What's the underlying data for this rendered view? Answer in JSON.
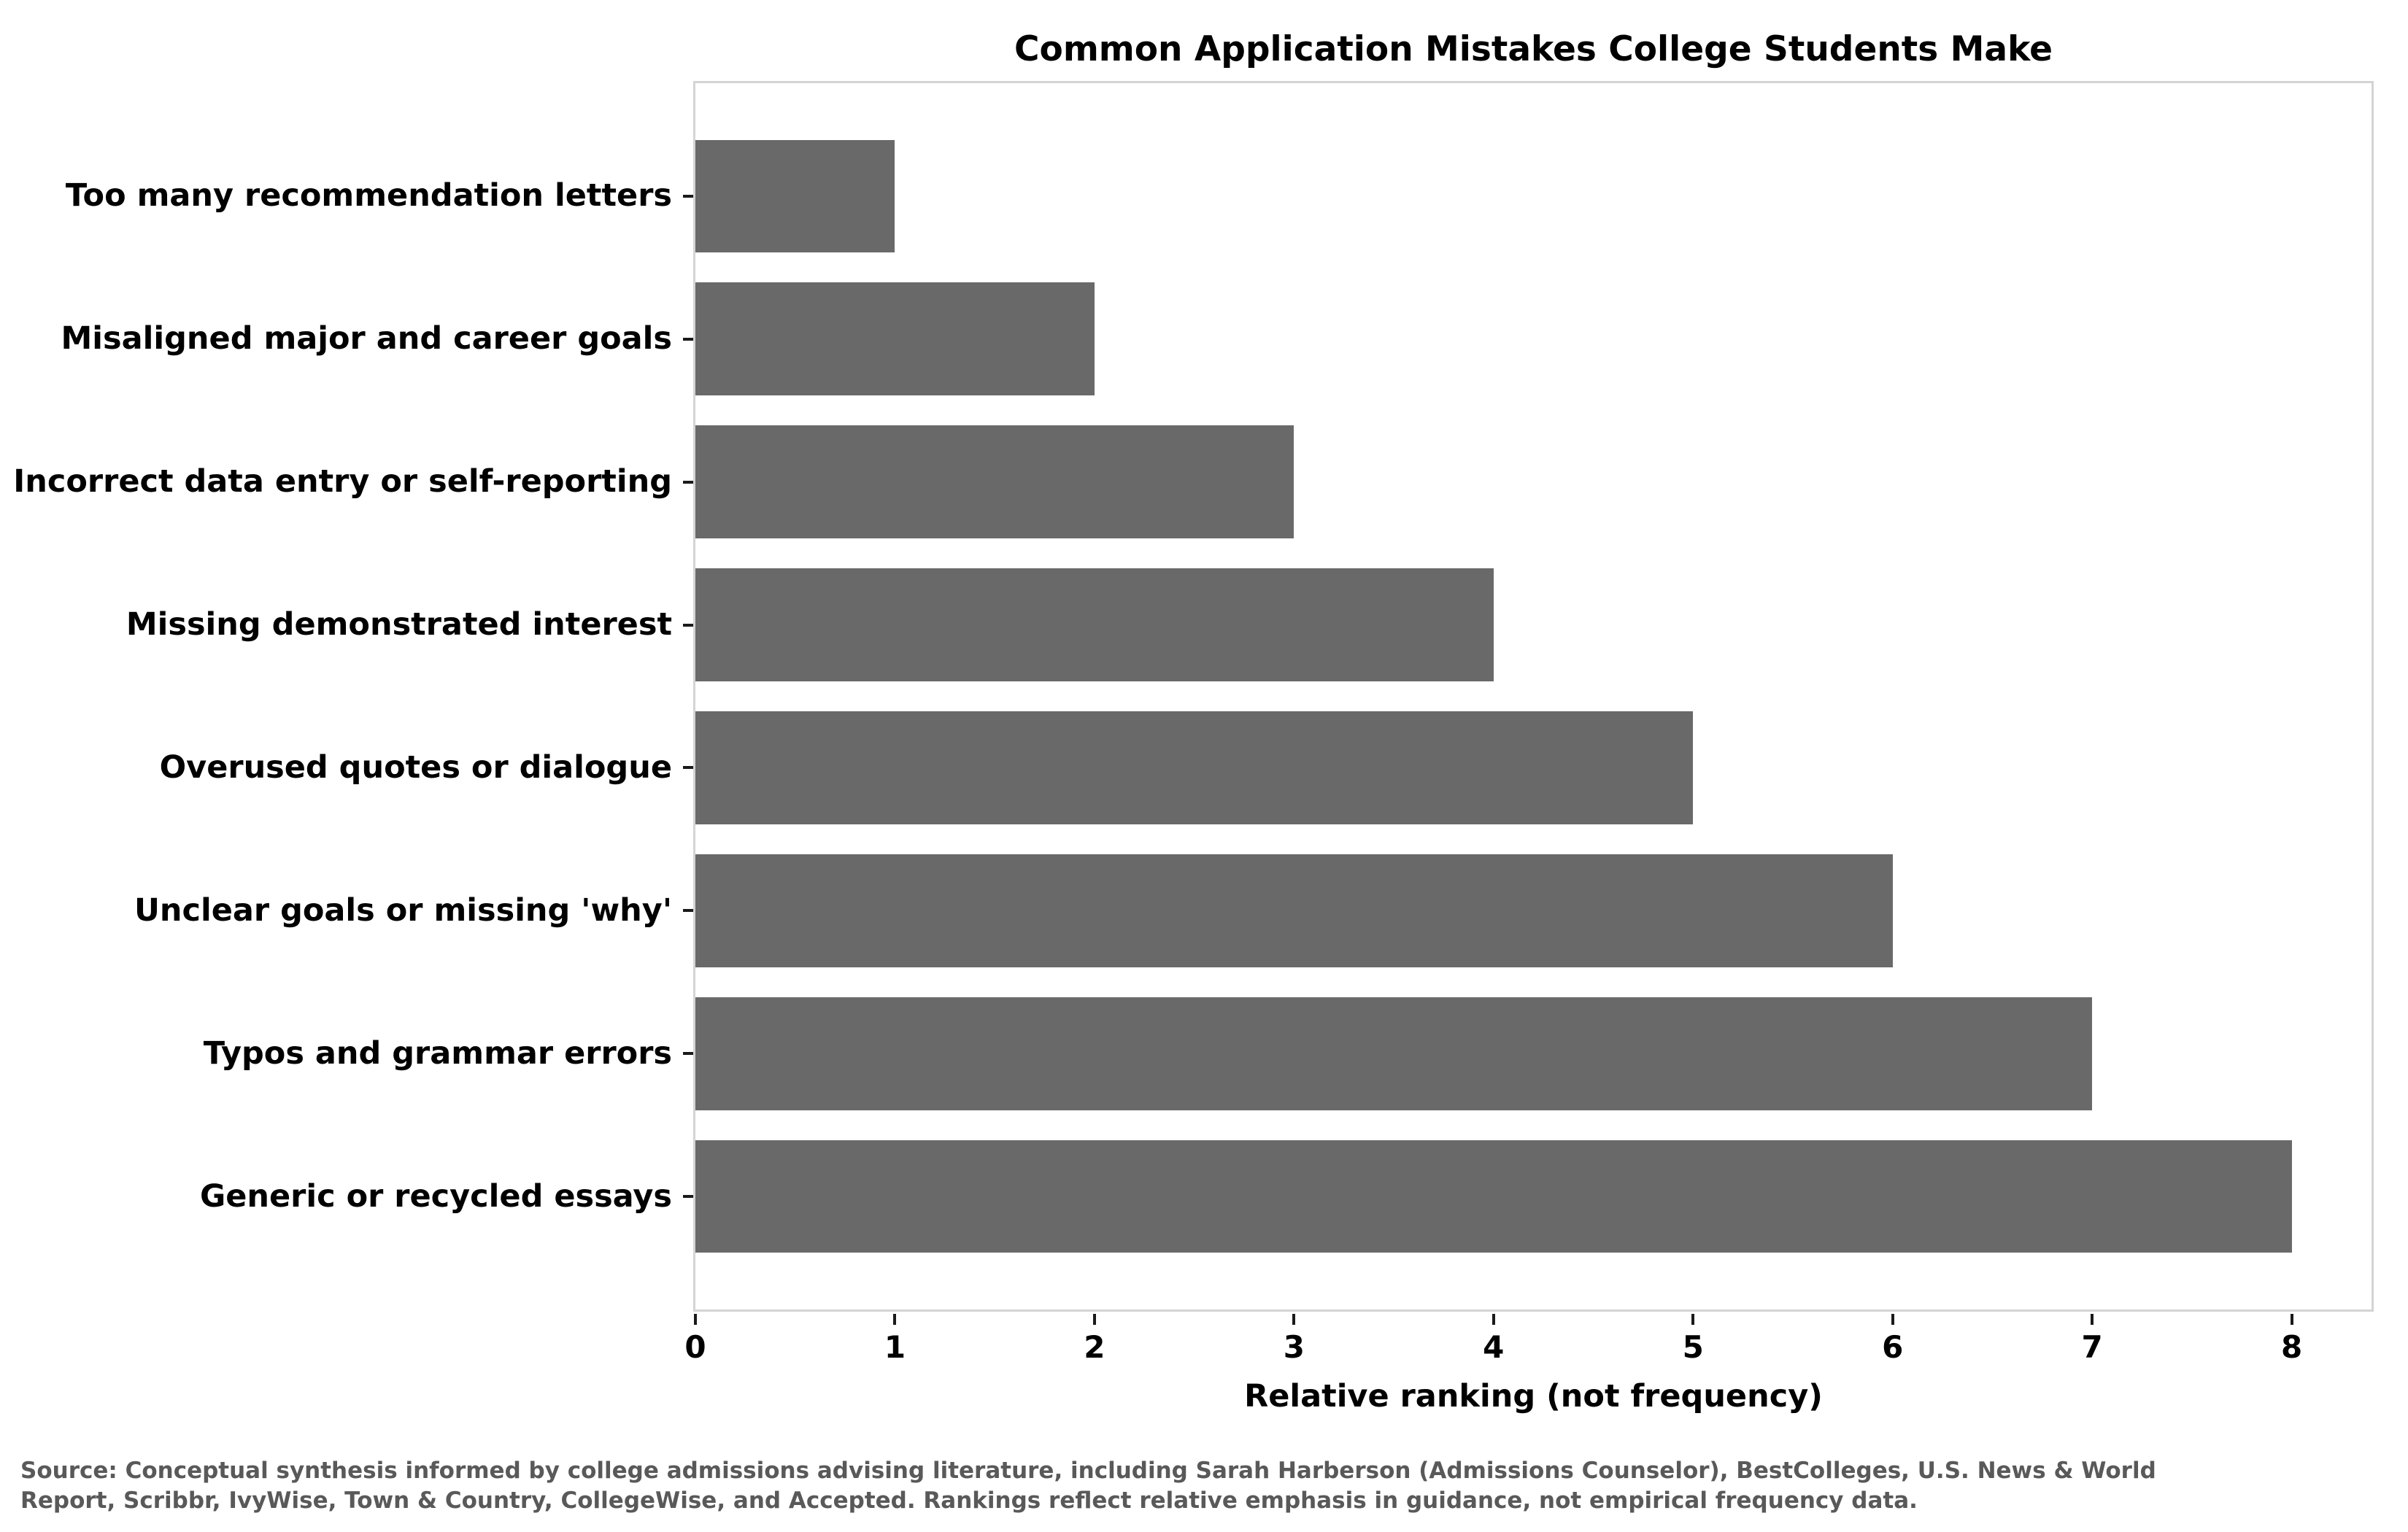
{
  "chart_data": {
    "type": "bar",
    "orientation": "horizontal",
    "title": "Common Application Mistakes College Students Make",
    "categories": [
      "Too many recommendation letters",
      "Misaligned major and career goals",
      "Incorrect data entry or self-reporting",
      "Missing demonstrated interest",
      "Overused quotes or dialogue",
      "Unclear goals or missing 'why'",
      "Typos and grammar errors",
      "Generic or recycled essays"
    ],
    "values": [
      1,
      2,
      3,
      4,
      5,
      6,
      7,
      8
    ],
    "xlabel": "Relative ranking (not frequency)",
    "ylabel": "",
    "x_ticks": [
      0,
      1,
      2,
      3,
      4,
      5,
      6,
      7,
      8
    ],
    "xlim": [
      0,
      8.4
    ],
    "grid": false,
    "legend": null,
    "bar_color": "#696969",
    "spine_color": "#d4d4d4",
    "tick_color": "#1a1a1a"
  },
  "footnote": {
    "lines": [
      "Source: Conceptual synthesis informed by college admissions advising literature, including Sarah Harberson (Admissions Counselor), BestColleges, U.S. News & World",
      "Report, Scribbr, IvyWise, Town & Country, CollegeWise, and Accepted. Rankings reflect relative emphasis in guidance, not empirical frequency data."
    ]
  }
}
